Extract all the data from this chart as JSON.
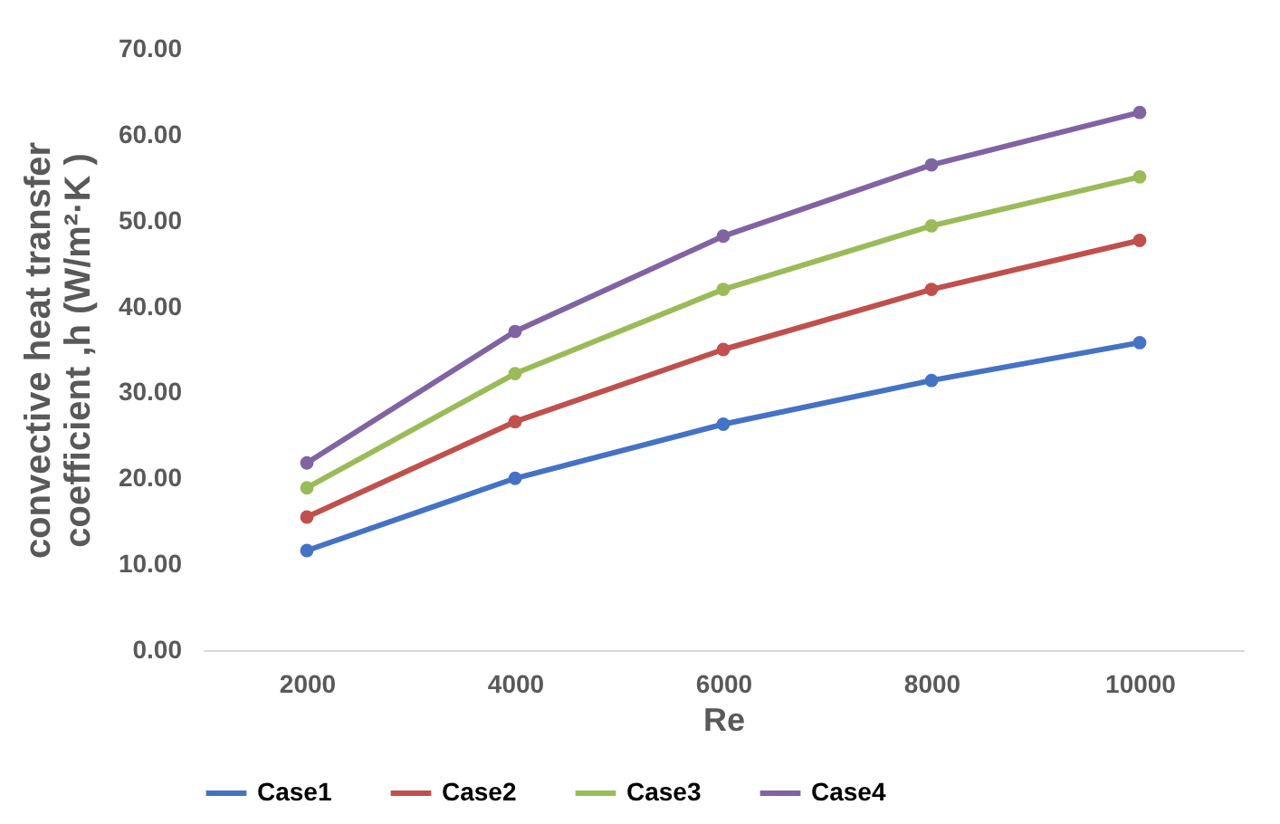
{
  "chart_data": {
    "type": "line",
    "xlabel": "Re",
    "ylabel": "convective heat transfer\ncoefficient ,h (W/m²·K )",
    "categories": [
      "2000",
      "4000",
      "6000",
      "8000",
      "10000"
    ],
    "series": [
      {
        "name": "Case1",
        "color": "#4472c4",
        "values": [
          11.6,
          20.0,
          26.3,
          31.4,
          35.8
        ]
      },
      {
        "name": "Case2",
        "color": "#c0504d",
        "values": [
          15.5,
          26.6,
          35.0,
          42.0,
          47.7
        ]
      },
      {
        "name": "Case3",
        "color": "#9bbb59",
        "values": [
          18.9,
          32.2,
          42.0,
          49.4,
          55.1
        ]
      },
      {
        "name": "Case4",
        "color": "#8064a2",
        "values": [
          21.8,
          37.1,
          48.2,
          56.5,
          62.6
        ]
      }
    ],
    "ylim": [
      0,
      70
    ],
    "yticks": [
      {
        "value": 0,
        "label": "0.00"
      },
      {
        "value": 10,
        "label": "10.00"
      },
      {
        "value": 20,
        "label": "20.00"
      },
      {
        "value": 30,
        "label": "30.00"
      },
      {
        "value": 40,
        "label": "40.00"
      },
      {
        "value": 50,
        "label": "50.00"
      },
      {
        "value": 60,
        "label": "60.00"
      },
      {
        "value": 70,
        "label": "70.00"
      }
    ],
    "grid": false,
    "legend": "bottom",
    "marker": "circle",
    "line_style": "solid"
  }
}
